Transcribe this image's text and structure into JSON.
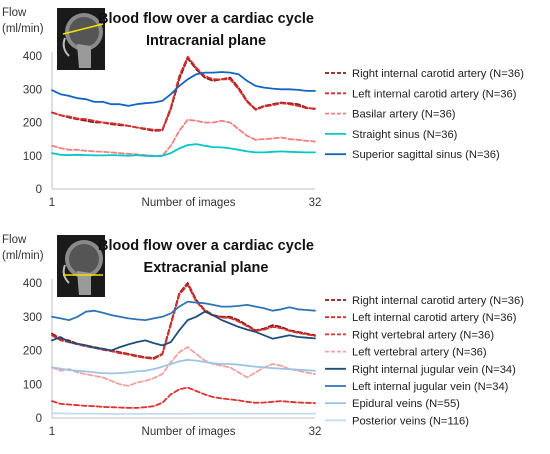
{
  "chart_data": [
    {
      "type": "line",
      "title": "Blood flow over a cardiac cycle",
      "subtitle": "Intracranial plane",
      "ylabel": "Flow\n(ml/min)",
      "xlabel": "Number of images",
      "xlim": [
        1,
        32
      ],
      "ylim": [
        0,
        400
      ],
      "yticks": [
        0,
        100,
        200,
        300,
        400
      ],
      "xticks": [
        1,
        32
      ],
      "legend_position": "right",
      "thumbnail": "sagittal MRI head thumbnail with intracranial plane line",
      "series": [
        {
          "name": "Right internal carotid artery (N=36)",
          "color": "#8b1a1a",
          "dash": "dashed",
          "values": [
            230,
            222,
            215,
            210,
            205,
            200,
            200,
            195,
            192,
            190,
            185,
            180,
            175,
            176,
            240,
            330,
            393,
            360,
            335,
            325,
            330,
            335,
            305,
            265,
            240,
            250,
            255,
            260,
            258,
            255,
            245,
            240
          ]
        },
        {
          "name": "Left internal carotid artery (N=36)",
          "color": "#d62f2f",
          "dash": "dashed",
          "values": [
            230,
            222,
            218,
            212,
            210,
            205,
            200,
            198,
            195,
            190,
            185,
            182,
            178,
            178,
            245,
            340,
            398,
            365,
            340,
            330,
            330,
            330,
            300,
            262,
            238,
            248,
            252,
            258,
            255,
            250,
            243,
            242
          ]
        },
        {
          "name": "Basilar artery (N=36)",
          "color": "#f08080",
          "dash": "dashed",
          "values": [
            130,
            123,
            118,
            118,
            115,
            113,
            112,
            110,
            108,
            106,
            104,
            102,
            100,
            100,
            130,
            175,
            208,
            205,
            200,
            200,
            205,
            200,
            180,
            160,
            148,
            150,
            152,
            155,
            150,
            148,
            145,
            143
          ]
        },
        {
          "name": "Straight sinus (N=36)",
          "color": "#00c8c8",
          "dash": "solid",
          "values": [
            108,
            103,
            102,
            103,
            102,
            101,
            101,
            102,
            101,
            100,
            102,
            100,
            99,
            100,
            108,
            122,
            132,
            135,
            130,
            126,
            125,
            122,
            118,
            113,
            110,
            110,
            112,
            113,
            112,
            111,
            110,
            110
          ]
        },
        {
          "name": "Superior sagittal sinus (N=36)",
          "color": "#1565c0",
          "dash": "solid",
          "values": [
            297,
            285,
            280,
            273,
            270,
            262,
            262,
            255,
            255,
            250,
            255,
            258,
            260,
            265,
            285,
            310,
            330,
            345,
            350,
            350,
            352,
            350,
            345,
            325,
            310,
            305,
            302,
            300,
            300,
            298,
            295,
            295
          ]
        }
      ]
    },
    {
      "type": "line",
      "title": "Blood flow over a cardiac cycle",
      "subtitle": "Extracranial plane",
      "ylabel": "Flow\n(ml/min)",
      "xlabel": "Number of images",
      "xlim": [
        1,
        32
      ],
      "ylim": [
        0,
        400
      ],
      "yticks": [
        0,
        100,
        200,
        300,
        400
      ],
      "xticks": [
        1,
        32
      ],
      "legend_position": "right",
      "thumbnail": "sagittal MRI head thumbnail with extracranial plane line",
      "series": [
        {
          "name": "Right internal carotid artery (N=36)",
          "color": "#8b1a1a",
          "dash": "dashed",
          "values": [
            250,
            235,
            230,
            220,
            215,
            210,
            205,
            200,
            195,
            190,
            185,
            180,
            178,
            190,
            280,
            370,
            400,
            350,
            320,
            305,
            300,
            300,
            290,
            275,
            260,
            265,
            275,
            270,
            260,
            255,
            250,
            245
          ]
        },
        {
          "name": "Left internal carotid artery (N=36)",
          "color": "#d62f2f",
          "dash": "dashed",
          "values": [
            245,
            230,
            225,
            218,
            212,
            208,
            202,
            198,
            192,
            188,
            182,
            178,
            175,
            188,
            275,
            365,
            395,
            345,
            318,
            302,
            298,
            296,
            286,
            272,
            258,
            262,
            270,
            266,
            258,
            252,
            248,
            243
          ]
        },
        {
          "name": "Right vertebral artery (N=36)",
          "color": "#e03030",
          "dash": "dashed",
          "values": [
            50,
            42,
            40,
            38,
            36,
            35,
            33,
            32,
            31,
            30,
            30,
            32,
            35,
            45,
            70,
            85,
            90,
            80,
            70,
            62,
            58,
            55,
            52,
            48,
            45,
            46,
            48,
            50,
            48,
            46,
            45,
            44
          ]
        },
        {
          "name": "Left vertebral artery (N=36)",
          "color": "#f4a0a0",
          "dash": "dashed",
          "values": [
            150,
            140,
            145,
            135,
            130,
            125,
            120,
            110,
            100,
            95,
            105,
            110,
            118,
            130,
            165,
            195,
            210,
            190,
            170,
            160,
            155,
            150,
            135,
            120,
            135,
            150,
            160,
            155,
            145,
            140,
            135,
            130
          ]
        },
        {
          "name": "Right internal jugular vein (N=34)",
          "color": "#1f4e79",
          "dash": "solid",
          "values": [
            230,
            240,
            225,
            220,
            215,
            208,
            205,
            200,
            210,
            218,
            225,
            230,
            222,
            215,
            225,
            260,
            290,
            300,
            315,
            305,
            290,
            280,
            270,
            262,
            255,
            245,
            235,
            240,
            245,
            240,
            238,
            236
          ]
        },
        {
          "name": "Left internal jugular vein (N=34)",
          "color": "#2e75b6",
          "dash": "solid",
          "values": [
            300,
            295,
            290,
            300,
            315,
            318,
            312,
            305,
            300,
            295,
            292,
            290,
            295,
            300,
            310,
            330,
            345,
            342,
            340,
            335,
            330,
            330,
            332,
            335,
            330,
            325,
            318,
            322,
            328,
            322,
            320,
            318
          ]
        },
        {
          "name": "Epidural veins (N=55)",
          "color": "#9dc3e6",
          "dash": "solid",
          "values": [
            150,
            146,
            142,
            140,
            138,
            135,
            133,
            132,
            133,
            135,
            138,
            140,
            145,
            152,
            160,
            168,
            172,
            170,
            166,
            162,
            160,
            160,
            158,
            155,
            152,
            150,
            148,
            146,
            145,
            143,
            142,
            140
          ]
        },
        {
          "name": "Posterior veins (N=116)",
          "color": "#c5d9ef",
          "dash": "solid",
          "values": [
            14,
            14,
            13,
            13,
            13,
            13,
            12,
            12,
            12,
            12,
            12,
            12,
            12,
            12,
            12,
            12,
            12,
            13,
            13,
            13,
            13,
            13,
            13,
            13,
            13,
            13,
            13,
            13,
            13,
            13,
            13,
            13
          ]
        }
      ]
    }
  ]
}
